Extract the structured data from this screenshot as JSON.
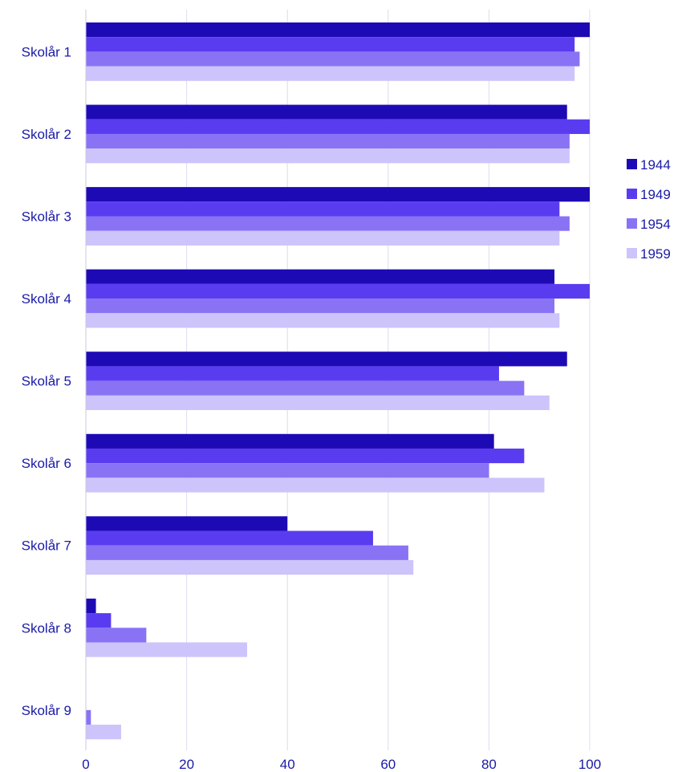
{
  "chart_data": {
    "type": "bar",
    "orientation": "horizontal",
    "categories": [
      "Skolår 1",
      "Skolår 2",
      "Skolår 3",
      "Skolår 4",
      "Skolår 5",
      "Skolår 6",
      "Skolår 7",
      "Skolår 8",
      "Skolår 9"
    ],
    "series": [
      {
        "name": "1944",
        "color": "#1e0ab5",
        "values": [
          100,
          95.5,
          100,
          93,
          95.5,
          81,
          40,
          2,
          0
        ]
      },
      {
        "name": "1949",
        "color": "#5a3cf0",
        "values": [
          97,
          100,
          94,
          100,
          82,
          87,
          57,
          5,
          0
        ]
      },
      {
        "name": "1954",
        "color": "#8a72f5",
        "values": [
          98,
          96,
          96,
          93,
          87,
          80,
          64,
          12,
          1
        ]
      },
      {
        "name": "1959",
        "color": "#ccc4fb",
        "values": [
          97,
          96,
          94,
          94,
          92,
          91,
          65,
          32,
          7
        ]
      }
    ],
    "xticks": [
      "0",
      "20",
      "40",
      "60",
      "80",
      "100"
    ],
    "xlim": [
      0,
      100
    ],
    "grid": true,
    "legend_position": "right",
    "title": "",
    "xlabel": "",
    "ylabel": ""
  }
}
